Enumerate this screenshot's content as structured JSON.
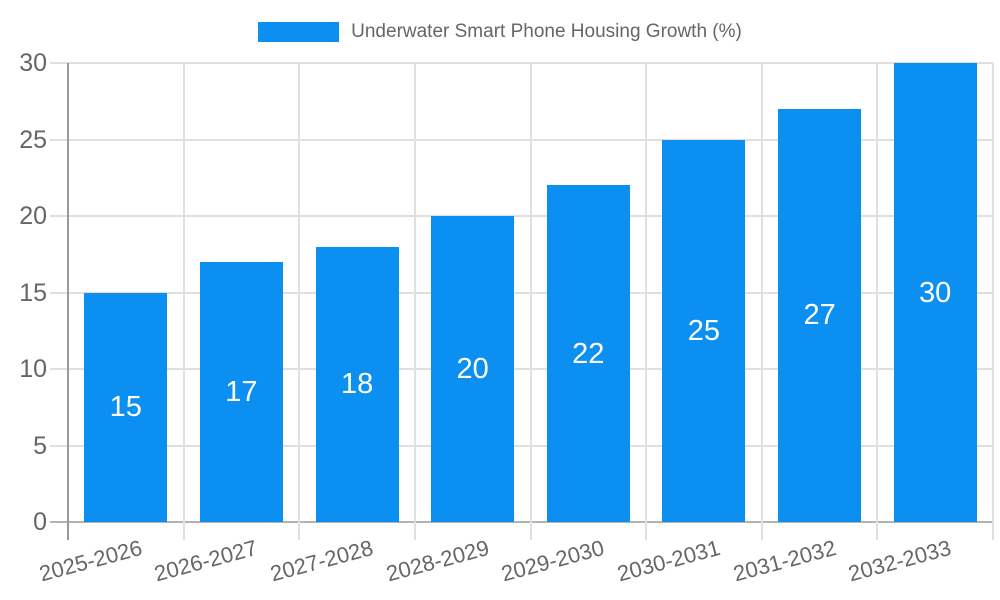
{
  "chart_data": {
    "type": "bar",
    "title": "Underwater Smart Phone Housing Growth (%)",
    "categories": [
      "2025-2026",
      "2026-2027",
      "2027-2028",
      "2028-2029",
      "2029-2030",
      "2030-2031",
      "2031-2032",
      "2032-2033"
    ],
    "series": [
      {
        "name": "Underwater Smart Phone Housing Growth (%)",
        "values": [
          15,
          17,
          18,
          20,
          22,
          25,
          27,
          30
        ],
        "color": "#0b90f2"
      }
    ],
    "xlabel": "",
    "ylabel": "",
    "ylim": [
      0,
      30
    ],
    "yticks": [
      0,
      5,
      10,
      15,
      20,
      25,
      30
    ],
    "grid": true,
    "legend_position": "top-center",
    "x_tick_rotation_deg": -15,
    "colors": {
      "background": "#ffffff",
      "grid": "#e0e0e0",
      "axis_line": "#999999",
      "baseline": "#b3b3b3",
      "tick_label": "#666666",
      "bar_value_label": "#ffffff"
    }
  }
}
